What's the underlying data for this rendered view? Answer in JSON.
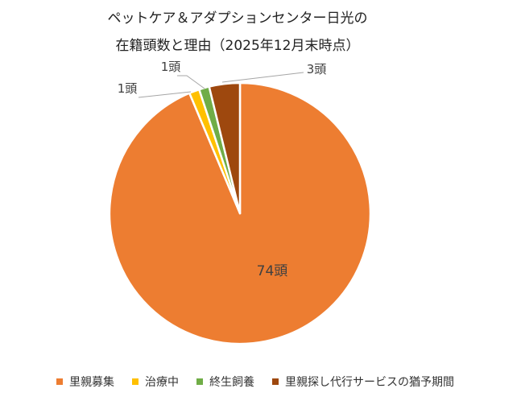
{
  "chart_data": {
    "type": "pie",
    "title_lines": [
      "ペットケア＆アダプションセンター日光の",
      "在籍頭数と理由（2025年12月末時点）"
    ],
    "categories": [
      "里親募集",
      "治療中",
      "終生飼養",
      "里親探し代行サービスの猶予期間"
    ],
    "values": [
      74,
      1,
      1,
      3
    ],
    "data_labels": [
      "74頭",
      "1頭",
      "1頭",
      "3頭"
    ],
    "colors": [
      "#ED7D31",
      "#FFC000",
      "#70AD47",
      "#9E480E"
    ],
    "legend_position": "bottom",
    "start_angle_deg": 0,
    "direction": "clockwise"
  }
}
